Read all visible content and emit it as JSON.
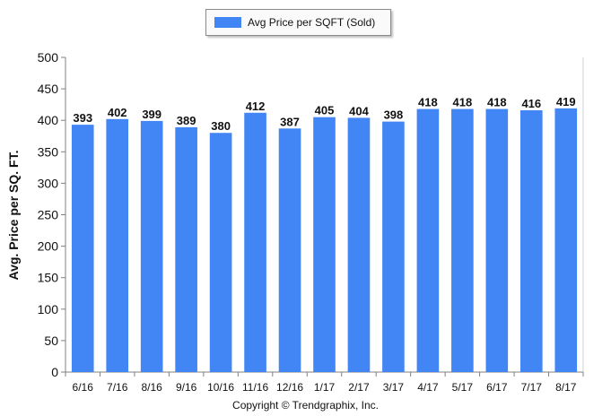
{
  "legend": {
    "label": "Avg Price per SQFT (Sold)",
    "color": "#4285f4"
  },
  "copyright": "Copyright © Trendgraphix, Inc.",
  "chart_data": {
    "type": "bar",
    "title": "",
    "xlabel": "",
    "ylabel": "Avg. Price per SQ. FT.",
    "ylim": [
      0,
      500
    ],
    "yticks": [
      0,
      50,
      100,
      150,
      200,
      250,
      300,
      350,
      400,
      450,
      500
    ],
    "grid": false,
    "legend_position": "top",
    "bar_color": "#4285f4",
    "categories": [
      "6/16",
      "7/16",
      "8/16",
      "9/16",
      "10/16",
      "11/16",
      "12/16",
      "1/17",
      "2/17",
      "3/17",
      "4/17",
      "5/17",
      "6/17",
      "7/17",
      "8/17"
    ],
    "series": [
      {
        "name": "Avg Price per SQFT (Sold)",
        "values": [
          393,
          402,
          399,
          389,
          380,
          412,
          387,
          405,
          404,
          398,
          418,
          418,
          418,
          416,
          419
        ]
      }
    ]
  }
}
